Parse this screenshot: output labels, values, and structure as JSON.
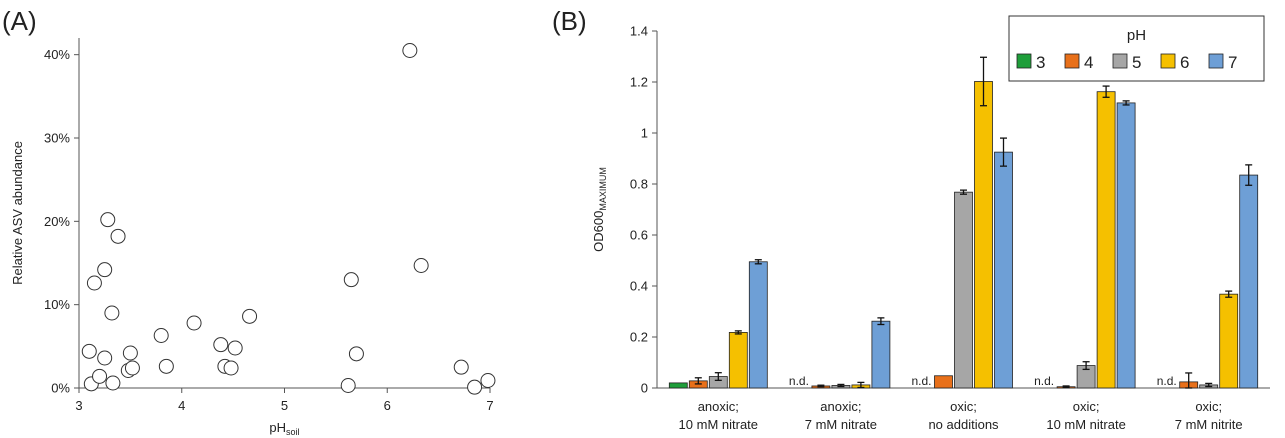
{
  "chart_data": [
    {
      "type": "scatter",
      "panel_label": "(A)",
      "title": "",
      "ylabel": "Relative ASV abundance",
      "xlabel_main": "pH",
      "xlabel_sub": "soil",
      "xlim": [
        3,
        7
      ],
      "ylim": [
        0,
        42
      ],
      "x_ticks": [
        3,
        4,
        5,
        6,
        7
      ],
      "y_ticks": [
        0,
        10,
        20,
        30,
        40
      ],
      "y_tick_labels": [
        "0%",
        "10%",
        "20%",
        "30%",
        "40%"
      ],
      "grid": false,
      "points": [
        {
          "x": 3.1,
          "y": 4.4
        },
        {
          "x": 3.12,
          "y": 0.5
        },
        {
          "x": 3.15,
          "y": 12.6
        },
        {
          "x": 3.2,
          "y": 1.4
        },
        {
          "x": 3.25,
          "y": 3.6
        },
        {
          "x": 3.25,
          "y": 14.2
        },
        {
          "x": 3.28,
          "y": 20.2
        },
        {
          "x": 3.32,
          "y": 9.0
        },
        {
          "x": 3.33,
          "y": 0.6
        },
        {
          "x": 3.38,
          "y": 18.2
        },
        {
          "x": 3.48,
          "y": 2.1
        },
        {
          "x": 3.5,
          "y": 4.2
        },
        {
          "x": 3.52,
          "y": 2.4
        },
        {
          "x": 3.8,
          "y": 6.3
        },
        {
          "x": 3.85,
          "y": 2.6
        },
        {
          "x": 4.12,
          "y": 7.8
        },
        {
          "x": 4.38,
          "y": 5.2
        },
        {
          "x": 4.42,
          "y": 2.6
        },
        {
          "x": 4.48,
          "y": 2.4
        },
        {
          "x": 4.52,
          "y": 4.8
        },
        {
          "x": 4.66,
          "y": 8.6
        },
        {
          "x": 5.62,
          "y": 0.3
        },
        {
          "x": 5.65,
          "y": 13.0
        },
        {
          "x": 5.7,
          "y": 4.1
        },
        {
          "x": 6.22,
          "y": 40.5
        },
        {
          "x": 6.33,
          "y": 14.7
        },
        {
          "x": 6.72,
          "y": 2.5
        },
        {
          "x": 6.85,
          "y": 0.1
        },
        {
          "x": 6.98,
          "y": 0.9
        }
      ]
    },
    {
      "type": "bar",
      "panel_label": "(B)",
      "title": "",
      "ylabel_main": "OD600",
      "ylabel_sub": "MAXIMUM",
      "ylim": [
        0,
        1.4
      ],
      "y_ticks": [
        0,
        0.2,
        0.4,
        0.6,
        0.8,
        1,
        1.2,
        1.4
      ],
      "y_tick_labels": [
        "0",
        "0.2",
        "0.4",
        "0.6",
        "0.8",
        "1",
        "1.2",
        "1.4"
      ],
      "grid": false,
      "legend": {
        "title": "pH",
        "position": "top-right"
      },
      "categories": [
        [
          "anoxic;",
          "10 mM nitrate"
        ],
        [
          "anoxic;",
          "7 mM nitrate"
        ],
        [
          "oxic;",
          "no additions"
        ],
        [
          "oxic;",
          "10 mM nitrate"
        ],
        [
          "oxic;",
          "7 mM nitrite"
        ]
      ],
      "nd_label": "n.d.",
      "series": [
        {
          "name": "3",
          "color": "#1e9e3a",
          "values": [
            0.02,
            null,
            null,
            null,
            null
          ],
          "errors": [
            0,
            0,
            0,
            0,
            0
          ]
        },
        {
          "name": "4",
          "color": "#e8701a",
          "values": [
            0.028,
            0.008,
            0.048,
            0.005,
            0.024
          ],
          "errors": [
            0.012,
            0.003,
            0,
            0.003,
            0.035
          ]
        },
        {
          "name": "5",
          "color": "#a6a6a6",
          "values": [
            0.045,
            0.01,
            0.768,
            0.088,
            0.012
          ],
          "errors": [
            0.015,
            0.004,
            0.008,
            0.015,
            0.006
          ]
        },
        {
          "name": "6",
          "color": "#f5c000",
          "values": [
            0.218,
            0.012,
            1.202,
            1.162,
            0.368
          ],
          "errors": [
            0.006,
            0.01,
            0.095,
            0.022,
            0.012
          ]
        },
        {
          "name": "7",
          "color": "#6e9fd6",
          "values": [
            0.495,
            0.262,
            0.925,
            1.118,
            0.835
          ],
          "errors": [
            0.008,
            0.013,
            0.055,
            0.008,
            0.04
          ]
        }
      ]
    }
  ]
}
